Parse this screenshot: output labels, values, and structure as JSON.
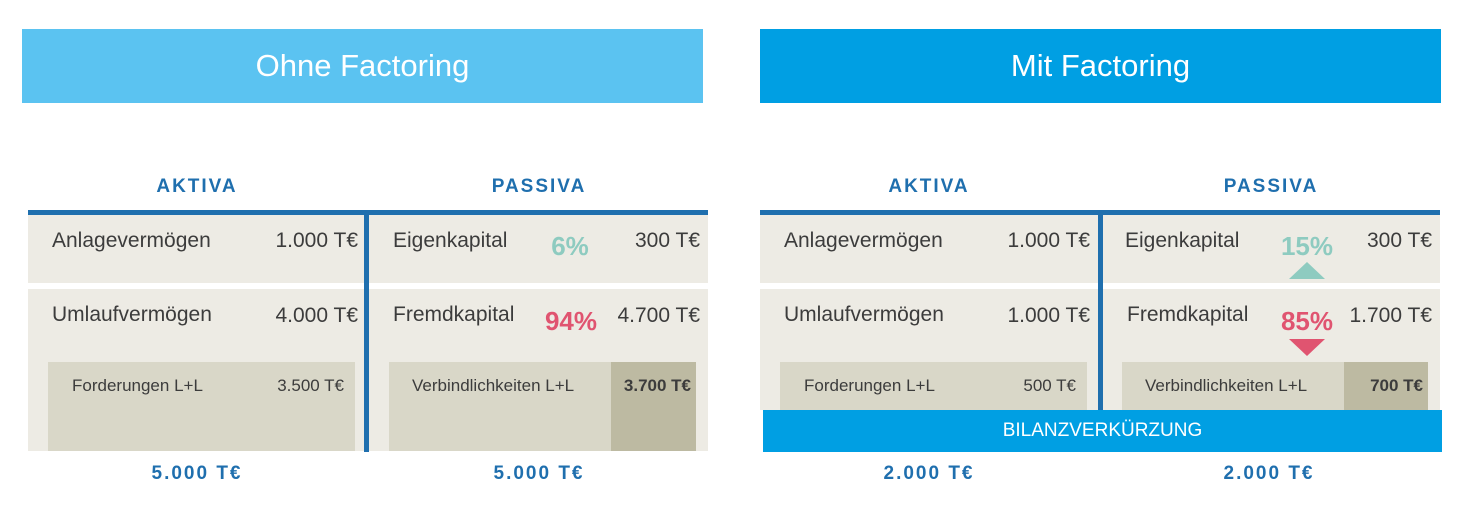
{
  "colors": {
    "banner_left": "#5bc3f1",
    "banner_right": "#009fe3",
    "heading_blue": "#1f6fae",
    "equity_pct": "#8ecbc0",
    "debt_pct": "#e05470",
    "cell_bg": "#edebe4",
    "sub_bg": "#d9d7c8",
    "sub_dark_bg": "#bdbaa2"
  },
  "left": {
    "title": "Ohne Factoring",
    "aktiva_heading": "AKTIVA",
    "passiva_heading": "PASSIVA",
    "anlage_label": "Anlagevermögen",
    "anlage_value": "1.000 T€",
    "umlauf_label": "Umlaufvermögen",
    "umlauf_value": "4.000 T€",
    "forderungen_label": "Forderungen L+L",
    "forderungen_value": "3.500 T€",
    "eigen_label": "Eigenkapital",
    "eigen_pct": "6%",
    "eigen_value": "300 T€",
    "fremd_label": "Fremdkapital",
    "fremd_pct": "94%",
    "fremd_value": "4.700 T€",
    "verb_label": "Verbindlichkeiten L+L",
    "verb_value": "3.700 T€",
    "aktiva_total": "5.000 T€",
    "passiva_total": "5.000 T€"
  },
  "right": {
    "title": "Mit Factoring",
    "aktiva_heading": "AKTIVA",
    "passiva_heading": "PASSIVA",
    "anlage_label": "Anlagevermögen",
    "anlage_value": "1.000 T€",
    "umlauf_label": "Umlaufvermögen",
    "umlauf_value": "1.000 T€",
    "forderungen_label": "Forderungen L+L",
    "forderungen_value": "500 T€",
    "eigen_label": "Eigenkapital",
    "eigen_pct": "15%",
    "eigen_value": "300 T€",
    "fremd_label": "Fremdkapital",
    "fremd_pct": "85%",
    "fremd_value": "1.700 T€",
    "verb_label": "Verbindlichkeiten L+L",
    "verb_value": "700 T€",
    "bar_label": "BILANZVERKÜRZUNG",
    "aktiva_total": "2.000 T€",
    "passiva_total": "2.000 T€"
  }
}
